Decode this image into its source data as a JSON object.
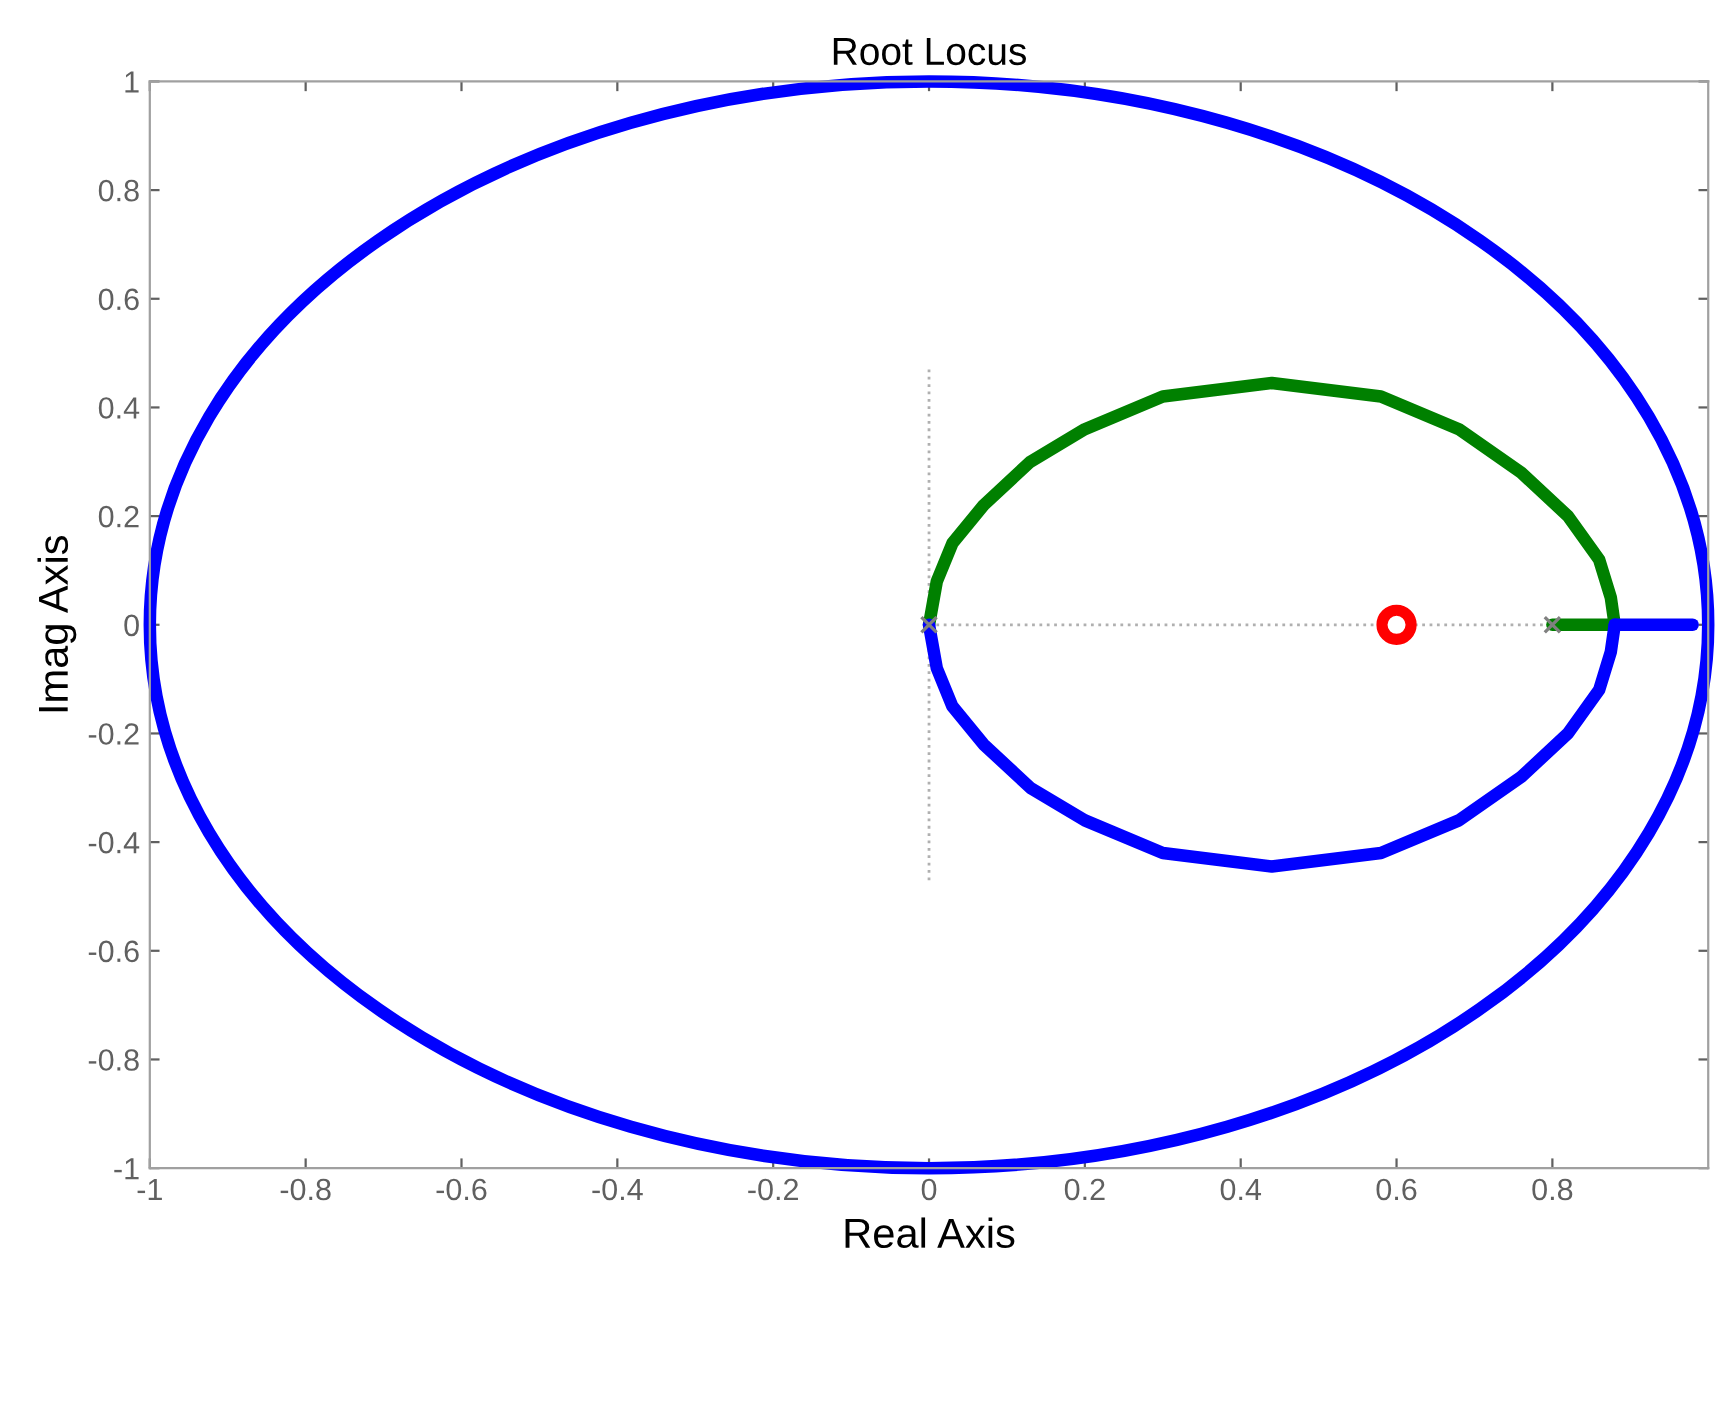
{
  "chart_data": {
    "type": "line",
    "title": "Root Locus",
    "xlabel": "Real Axis",
    "ylabel": "Imag Axis",
    "xlim": [
      -1,
      1
    ],
    "ylim": [
      -1,
      1
    ],
    "xticks": [
      -1,
      -0.8,
      -0.6,
      -0.4,
      -0.2,
      0,
      0.2,
      0.4,
      0.6,
      0.8
    ],
    "yticks": [
      -1,
      -0.8,
      -0.6,
      -0.4,
      -0.2,
      0,
      0.2,
      0.4,
      0.6,
      0.8,
      1
    ],
    "series": [
      {
        "color": "#b0b0b0",
        "line_style": "dotted",
        "x": [
          0,
          0.8
        ],
        "values": [
          0,
          0
        ]
      },
      {
        "color": "#b0b0b0",
        "line_style": "dotted",
        "x": [
          0,
          0
        ],
        "values": [
          -0.47,
          0.47
        ]
      },
      {
        "color": "#008000",
        "x": [
          0,
          0.01,
          0.03,
          0.07,
          0.13,
          0.2,
          0.3,
          0.44,
          0.58,
          0.68,
          0.76,
          0.82,
          0.86,
          0.875,
          0.88
        ],
        "values": [
          0,
          0.08,
          0.15,
          0.22,
          0.3,
          0.36,
          0.42,
          0.445,
          0.42,
          0.36,
          0.28,
          0.2,
          0.12,
          0.05,
          0
        ]
      },
      {
        "color": "#008000",
        "x": [
          0.8,
          0.88
        ],
        "values": [
          0,
          0
        ]
      },
      {
        "color": "#0000ff",
        "x": [
          0,
          0.01,
          0.03,
          0.07,
          0.13,
          0.2,
          0.3,
          0.44,
          0.58,
          0.68,
          0.76,
          0.82,
          0.86,
          0.875,
          0.88
        ],
        "values": [
          0,
          -0.08,
          -0.15,
          -0.22,
          -0.3,
          -0.36,
          -0.42,
          -0.445,
          -0.42,
          -0.36,
          -0.28,
          -0.2,
          -0.12,
          -0.05,
          0
        ]
      },
      {
        "color": "#0000ff",
        "x": [
          0.88,
          0.98
        ],
        "values": [
          0,
          0
        ]
      },
      {
        "type": "scatter",
        "color": "#808080",
        "marker": "cross",
        "x": [
          0,
          0.8
        ],
        "values": [
          0,
          0
        ]
      },
      {
        "type": "scatter",
        "color": "#ff0000",
        "marker": "circle",
        "x": [
          0.6
        ],
        "values": [
          0
        ]
      }
    ]
  }
}
